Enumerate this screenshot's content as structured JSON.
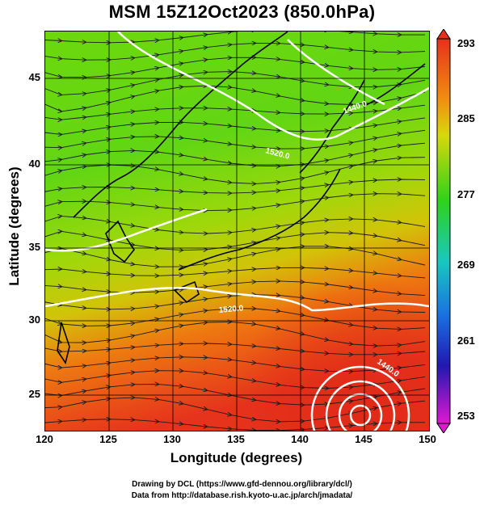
{
  "title": "MSM 15Z12Oct2023 (850.0hPa)",
  "xlabel": "Longitude (degrees)",
  "ylabel": "Latitude  (degrees)",
  "x_ticks": [
    "120",
    "125",
    "130",
    "135",
    "140",
    "145",
    "150"
  ],
  "y_ticks": [
    "25",
    "30",
    "35",
    "40",
    "45"
  ],
  "colorbar": {
    "ticks": [
      "293",
      "285",
      "277",
      "269",
      "261",
      "253"
    ],
    "min": 253,
    "max": 293
  },
  "contour_labels": [
    "1440.0",
    "1520.0",
    "1520.0",
    "1440.0"
  ],
  "footer": {
    "line1": "Drawing by DCL (https://www.gfd-dennou.org/library/dcl/)",
    "line2": "Data from http://database.rish.kyoto-u.ac.jp/arch/jmadata/"
  },
  "colors": {
    "warm": "#e8401a",
    "mid": "#7ed60a",
    "cool": "#3bd71a",
    "contour": "#ffffff",
    "streamline": "#1a1a1a"
  }
}
